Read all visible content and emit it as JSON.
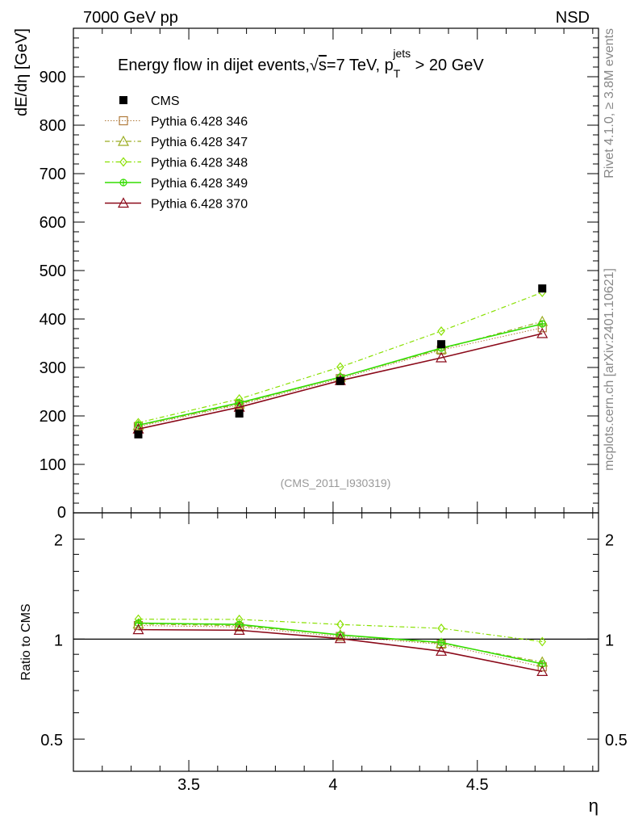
{
  "header": {
    "beam": "7000 GeV pp",
    "process": "NSD"
  },
  "side_labels": {
    "rivet": "Rivet 4.1.0, ≥ 3.8M events",
    "mcplots": "mcplots.cern.ch [arXiv:2401.10621]"
  },
  "chart_data": {
    "type": "line",
    "title": "Energy flow in dijet events,√s=7 TeV, p_T^jets > 20 GeV",
    "title_parts": {
      "pre": "Energy flow in dijet events,",
      "sqrt": "√",
      "s": "s",
      "mid": "=7 TeV, p",
      "sub": "T",
      "sup": "jets",
      "post": " > 20 GeV"
    },
    "analysis_id": "(CMS_2011_I930319)",
    "xlabel": "η",
    "ylabel": "dE/dη [GeV]",
    "ratio_ylabel": "Ratio to CMS",
    "xlim": [
      3.1,
      4.92
    ],
    "ylim": [
      0,
      1000
    ],
    "ratio_ylim": [
      0.4,
      2.4
    ],
    "x_ticks": [
      "3.5",
      "4",
      "4.5"
    ],
    "y_ticks": [
      "100",
      "200",
      "300",
      "400",
      "500",
      "600",
      "700",
      "800",
      "900"
    ],
    "y_zero_label": "0",
    "ratio_ticks": [
      "0.5",
      "1",
      "2"
    ],
    "x": [
      3.325,
      3.675,
      4.025,
      4.375,
      4.725
    ],
    "data": {
      "name": "CMS",
      "values": [
        162,
        205,
        272,
        348,
        463
      ],
      "color": "#000000"
    },
    "series": [
      {
        "name": "Pythia 6.428 346",
        "values": [
          178,
          223,
          277,
          336,
          382
        ],
        "color": "#b07a3b",
        "marker": "square"
      },
      {
        "name": "Pythia 6.428 347",
        "values": [
          180,
          225,
          280,
          338,
          395
        ],
        "color": "#9aac20",
        "marker": "triangle"
      },
      {
        "name": "Pythia 6.428 348",
        "values": [
          186,
          235,
          301,
          375,
          455
        ],
        "color": "#88e000",
        "marker": "diamond"
      },
      {
        "name": "Pythia 6.428 349",
        "values": [
          181,
          227,
          280,
          340,
          390
        ],
        "color": "#33dd00",
        "marker": "cross"
      },
      {
        "name": "Pythia 6.428 370",
        "values": [
          173,
          218,
          273,
          320,
          370
        ],
        "color": "#8b0a1a",
        "marker": "triangle"
      }
    ]
  }
}
